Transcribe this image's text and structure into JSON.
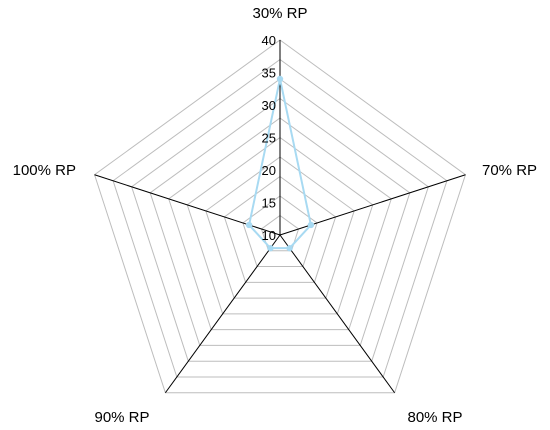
{
  "chart_data": {
    "type": "radar",
    "categories": [
      "30% RP",
      "70% RP",
      "80% RP",
      "90% RP",
      "100% RP"
    ],
    "series": [
      {
        "values": [
          34,
          15,
          12.5,
          12.5,
          15
        ],
        "color": "#a8daf2"
      }
    ],
    "rlim": [
      10,
      40
    ],
    "ticks": [
      "10",
      "15",
      "20",
      "25",
      "30",
      "35",
      "40"
    ],
    "grid": true,
    "legend": "none"
  }
}
